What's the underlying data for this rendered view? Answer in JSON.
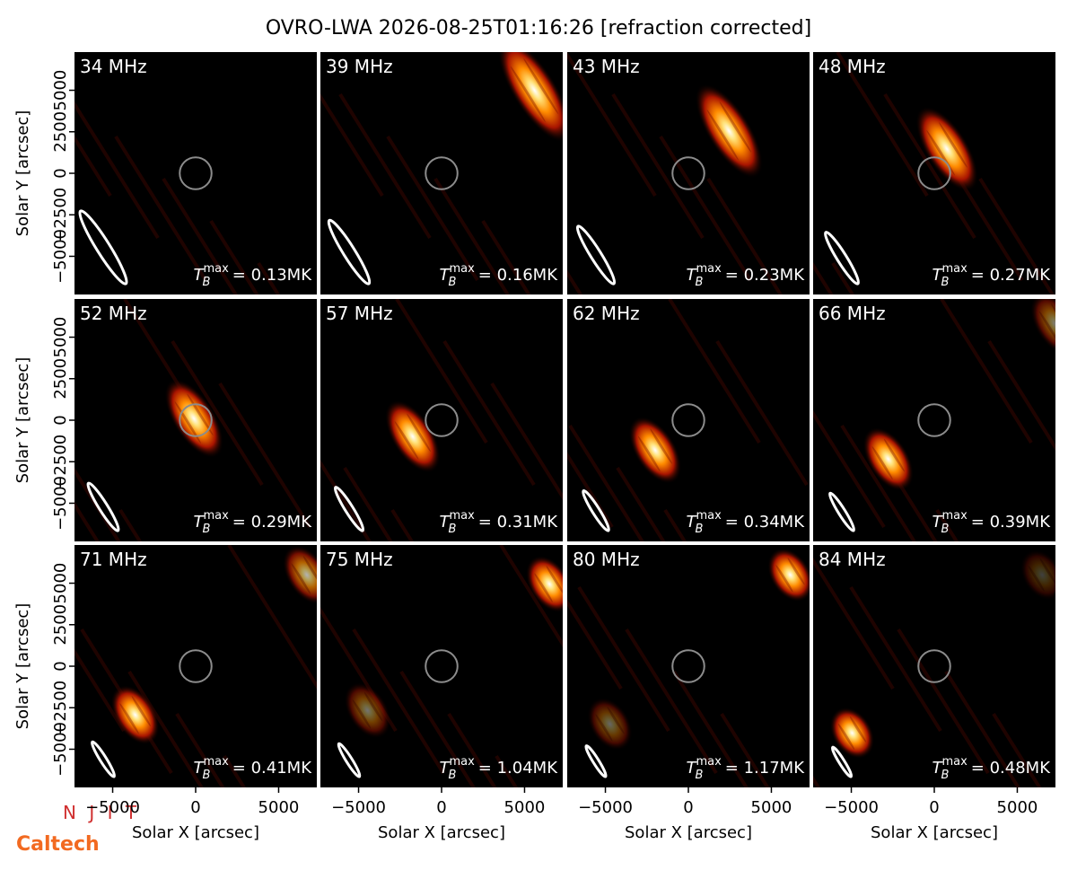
{
  "chart_data": {
    "type": "image-grid",
    "title": "OVRO-LWA 2026-08-25T01:16:26 [refraction corrected]",
    "xlabel": "Solar X [arcsec]",
    "ylabel": "Solar Y [arcsec]",
    "xlim": [
      -7300,
      7300
    ],
    "ylim": [
      -7300,
      7300
    ],
    "xticks": [
      {
        "value": -5000,
        "label": "−5000"
      },
      0,
      5000
    ],
    "yticks": [
      {
        "value": -5000,
        "label": "−5000"
      },
      {
        "value": -2500,
        "label": "−2500"
      },
      0,
      2500,
      5000
    ],
    "disk_radius": 960,
    "tb_symbol": {
      "base": "T",
      "sub": "B",
      "sup": "max"
    },
    "panels": [
      {
        "freq": "34 MHz",
        "tb_max": "= 0.13MK",
        "beam": {
          "major": 5160,
          "minor": 800
        },
        "sources": []
      },
      {
        "freq": "39 MHz",
        "tb_max": "= 0.16MK",
        "beam": {
          "major": 4500,
          "minor": 700
        },
        "sources": [
          {
            "x": 5600,
            "y": 5000,
            "peak": 1
          }
        ]
      },
      {
        "freq": "43 MHz",
        "tb_max": "= 0.23MK",
        "beam": {
          "major": 4080,
          "minor": 630
        },
        "sources": [
          {
            "x": 2450,
            "y": 2550,
            "peak": 1
          }
        ]
      },
      {
        "freq": "48 MHz",
        "tb_max": "= 0.27MK",
        "beam": {
          "major": 3650,
          "minor": 570
        },
        "sources": [
          {
            "x": 760,
            "y": 1470,
            "peak": 1
          }
        ]
      },
      {
        "freq": "52 MHz",
        "tb_max": "= 0.29MK",
        "beam": {
          "major": 3370,
          "minor": 520
        },
        "sources": [
          {
            "x": -100,
            "y": 100,
            "peak": 1
          }
        ]
      },
      {
        "freq": "57 MHz",
        "tb_max": "= 0.31MK",
        "beam": {
          "major": 3080,
          "minor": 480
        },
        "sources": [
          {
            "x": -1740,
            "y": -980,
            "peak": 1
          }
        ]
      },
      {
        "freq": "62 MHz",
        "tb_max": "= 0.34MK",
        "beam": {
          "major": 2830,
          "minor": 440
        },
        "sources": [
          {
            "x": -2000,
            "y": -1800,
            "peak": 1
          }
        ]
      },
      {
        "freq": "66 MHz",
        "tb_max": "= 0.39MK",
        "beam": {
          "major": 2660,
          "minor": 410
        },
        "sources": [
          {
            "x": -2770,
            "y": -2340,
            "peak": 1
          },
          {
            "x": 7300,
            "y": 5800,
            "peak": 0.5
          }
        ]
      },
      {
        "freq": "71 MHz",
        "tb_max": "= 0.41MK",
        "beam": {
          "major": 2470,
          "minor": 380
        },
        "sources": [
          {
            "x": -3640,
            "y": -2930,
            "peak": 1
          },
          {
            "x": 6700,
            "y": 5500,
            "peak": 0.7
          }
        ]
      },
      {
        "freq": "75 MHz",
        "tb_max": "= 1.04MK",
        "beam": {
          "major": 2340,
          "minor": 360
        },
        "sources": [
          {
            "x": -4460,
            "y": -2660,
            "peak": 0.45
          },
          {
            "x": 6500,
            "y": 4950,
            "peak": 1
          }
        ]
      },
      {
        "freq": "80 MHz",
        "tb_max": "= 1.17MK",
        "beam": {
          "major": 2190,
          "minor": 340
        },
        "sources": [
          {
            "x": -4730,
            "y": -3480,
            "peak": 0.4
          },
          {
            "x": 6140,
            "y": 5500,
            "peak": 1
          }
        ]
      },
      {
        "freq": "84 MHz",
        "tb_max": "= 0.48MK",
        "beam": {
          "major": 2090,
          "minor": 320
        },
        "sources": [
          {
            "x": -4950,
            "y": -4020,
            "peak": 1
          },
          {
            "x": 6500,
            "y": 5500,
            "peak": 0.25
          }
        ]
      }
    ],
    "logos": [
      "N J I T",
      "Caltech"
    ]
  }
}
